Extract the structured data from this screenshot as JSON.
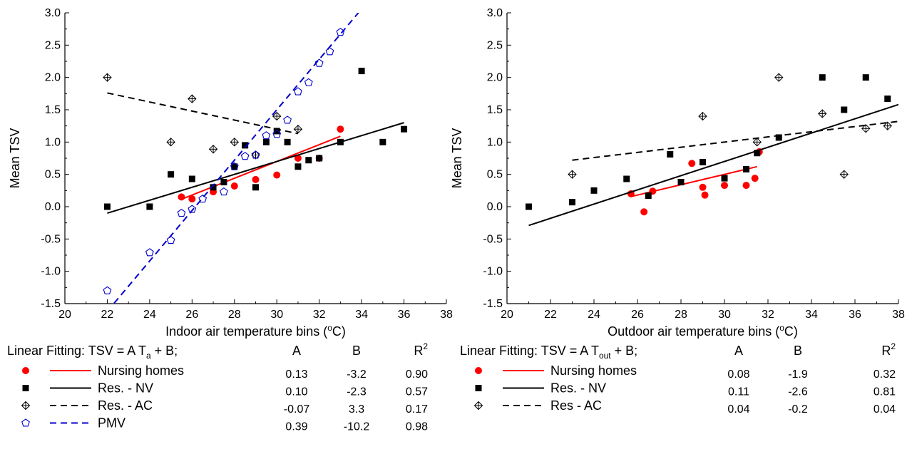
{
  "colors": {
    "nursing": "#ff0000",
    "nv": "#000000",
    "ac": "#000000",
    "pmv": "#0000cc"
  },
  "chart_data": [
    {
      "type": "scatter",
      "xlabel": "Indoor air temperature bins (°C)",
      "xlabel_main": "Indoor air temperature bins (",
      "xlabel_sup": "o",
      "xlabel_end": "C)",
      "ylabel": "Mean TSV",
      "xlim": [
        20,
        38
      ],
      "ylim": [
        -1.5,
        3.0
      ],
      "xticks": [
        20,
        22,
        24,
        26,
        28,
        30,
        32,
        34,
        36,
        38
      ],
      "yticks": [
        -1.5,
        -1.0,
        -0.5,
        0.0,
        0.5,
        1.0,
        1.5,
        2.0,
        2.5,
        3.0
      ],
      "grid": false,
      "legend": {
        "title_main": "Linear Fitting: TSV = A T",
        "title_sub": "a",
        "title_end": " + B;",
        "col_a": "A",
        "col_b": "B",
        "col_r": "R",
        "col_r_sup": "2"
      },
      "series": [
        {
          "name": "Nursing homes",
          "key": "nursing",
          "marker": "circle",
          "line": "solid",
          "A": "0.13",
          "B": "-3.2",
          "R2": "0.90",
          "fit_range": [
            25.5,
            33.0
          ],
          "points": [
            [
              25.5,
              0.15
            ],
            [
              26,
              0.12
            ],
            [
              27,
              0.23
            ],
            [
              28,
              0.32
            ],
            [
              29,
              0.42
            ],
            [
              30,
              0.49
            ],
            [
              31,
              0.75
            ],
            [
              32,
              0.75
            ],
            [
              33,
              1.2
            ]
          ]
        },
        {
          "name": "Res. - NV",
          "key": "nv",
          "marker": "square",
          "line": "solid",
          "A": "0.10",
          "B": "-2.3",
          "R2": "0.57",
          "fit_range": [
            22,
            36
          ],
          "points": [
            [
              22,
              0.0
            ],
            [
              24,
              0.0
            ],
            [
              25,
              0.5
            ],
            [
              26,
              0.43
            ],
            [
              27,
              0.3
            ],
            [
              27.5,
              0.38
            ],
            [
              28,
              0.62
            ],
            [
              28.5,
              0.95
            ],
            [
              29,
              0.3
            ],
            [
              29.5,
              1.0
            ],
            [
              30,
              1.17
            ],
            [
              30.5,
              1.0
            ],
            [
              31,
              0.62
            ],
            [
              31.5,
              0.72
            ],
            [
              32,
              0.75
            ],
            [
              33,
              1.0
            ],
            [
              34,
              2.1
            ],
            [
              35,
              1.0
            ],
            [
              36,
              1.2
            ]
          ]
        },
        {
          "name": "Res. - AC",
          "key": "ac",
          "marker": "crossdiamond",
          "line": "dashed",
          "A": "-0.07",
          "B": "3.3",
          "R2": "0.17",
          "fit_range": [
            22,
            31
          ],
          "points": [
            [
              22,
              2.0
            ],
            [
              25,
              1.0
            ],
            [
              26,
              1.67
            ],
            [
              27,
              0.89
            ],
            [
              28,
              1.0
            ],
            [
              29,
              0.8
            ],
            [
              30,
              1.4
            ],
            [
              31,
              1.2
            ]
          ]
        },
        {
          "name": "PMV",
          "key": "pmv",
          "marker": "pentagon",
          "line": "dashed",
          "A": "0.39",
          "B": "-10.2",
          "R2": "0.98",
          "fit_range": [
            22,
            34
          ],
          "points": [
            [
              22,
              -1.3
            ],
            [
              24,
              -0.71
            ],
            [
              25,
              -0.52
            ],
            [
              25.5,
              -0.1
            ],
            [
              26,
              -0.04
            ],
            [
              26.5,
              0.12
            ],
            [
              27.5,
              0.23
            ],
            [
              28,
              0.62
            ],
            [
              28.5,
              0.78
            ],
            [
              29,
              0.8
            ],
            [
              29.5,
              1.1
            ],
            [
              30,
              1.12
            ],
            [
              30.5,
              1.34
            ],
            [
              31,
              1.78
            ],
            [
              31.5,
              1.92
            ],
            [
              32,
              2.22
            ],
            [
              32.5,
              2.4
            ],
            [
              33,
              2.7
            ]
          ]
        }
      ]
    },
    {
      "type": "scatter",
      "xlabel": "Outdoor air temperature bins (°C)",
      "xlabel_main": "Outdoor air temperature bins (",
      "xlabel_sup": "o",
      "xlabel_end": "C)",
      "ylabel": "Mean TSV",
      "xlim": [
        20,
        38
      ],
      "ylim": [
        -1.5,
        3.0
      ],
      "xticks": [
        20,
        22,
        24,
        26,
        28,
        30,
        32,
        34,
        36,
        38
      ],
      "yticks": [
        -1.5,
        -1.0,
        -0.5,
        0.0,
        0.5,
        1.0,
        1.5,
        2.0,
        2.5,
        3.0
      ],
      "grid": false,
      "legend": {
        "title_main": "Linear Fitting: TSV = A T",
        "title_sub": "out",
        "title_end": " + B;",
        "col_a": "A",
        "col_b": "B",
        "col_r": "R",
        "col_r_sup": "2"
      },
      "series": [
        {
          "name": "Nursing homes",
          "key": "nursing",
          "marker": "circle",
          "line": "solid",
          "A": "0.08",
          "B": "-1.9",
          "R2": "0.32",
          "fit_range": [
            25.7,
            31.5
          ],
          "points": [
            [
              25.7,
              0.2
            ],
            [
              26.3,
              -0.08
            ],
            [
              26.7,
              0.24
            ],
            [
              28.5,
              0.67
            ],
            [
              29,
              0.3
            ],
            [
              29.1,
              0.18
            ],
            [
              30,
              0.33
            ],
            [
              31,
              0.33
            ],
            [
              31.4,
              0.44
            ],
            [
              31.6,
              0.85
            ]
          ]
        },
        {
          "name": "Res. - NV",
          "key": "nv",
          "marker": "square",
          "line": "solid",
          "A": "0.11",
          "B": "-2.6",
          "R2": "0.81",
          "fit_range": [
            21,
            38
          ],
          "points": [
            [
              21,
              0.0
            ],
            [
              23,
              0.07
            ],
            [
              24,
              0.25
            ],
            [
              25.5,
              0.43
            ],
            [
              26.5,
              0.17
            ],
            [
              27.5,
              0.81
            ],
            [
              28,
              0.38
            ],
            [
              29,
              0.69
            ],
            [
              30,
              0.44
            ],
            [
              31,
              0.58
            ],
            [
              31.5,
              0.83
            ],
            [
              32.5,
              1.07
            ],
            [
              34.5,
              2.0
            ],
            [
              35.5,
              1.5
            ],
            [
              36.5,
              2.0
            ],
            [
              37.5,
              1.67
            ]
          ]
        },
        {
          "name": "Res -  AC",
          "key": "ac",
          "marker": "crossdiamond",
          "line": "dashed",
          "A": "0.04",
          "B": "-0.2",
          "R2": "0.04",
          "fit_range": [
            23,
            38
          ],
          "points": [
            [
              23,
              0.5
            ],
            [
              29,
              1.4
            ],
            [
              31.5,
              1.0
            ],
            [
              32.5,
              2.0
            ],
            [
              34.5,
              1.44
            ],
            [
              35.5,
              0.5
            ],
            [
              36.5,
              1.21
            ],
            [
              37.5,
              1.25
            ]
          ]
        }
      ]
    }
  ]
}
